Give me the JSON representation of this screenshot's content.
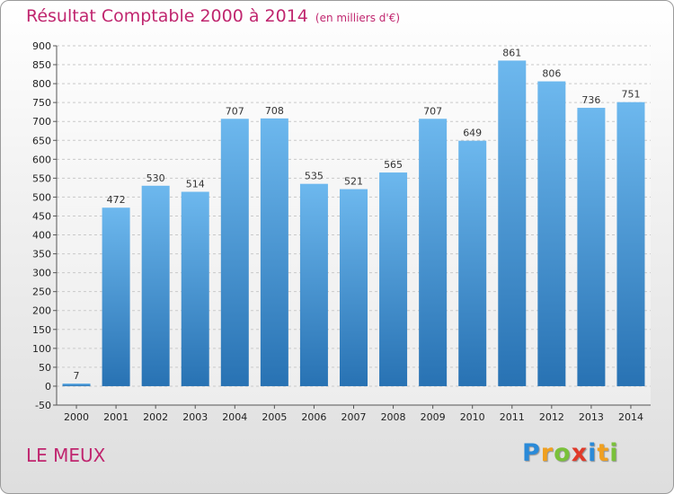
{
  "title": "Résultat Comptable 2000 à 2014",
  "subtitle": "(en milliers d'€)",
  "town": "LE MEUX",
  "logo": {
    "letters": [
      "P",
      "r",
      "o",
      "x",
      "i",
      "t",
      "i"
    ],
    "colors": [
      "#2a8ad8",
      "#f0a020",
      "#7ac13a",
      "#e03a2a",
      "#2a8ad8",
      "#f0a020",
      "#7ac13a"
    ]
  },
  "colors": {
    "bar_light": "#6db8ee",
    "bar_dark": "#2872b3",
    "title": "#c0266f"
  },
  "chart_data": {
    "type": "bar",
    "title": "Résultat Comptable 2000 à 2014",
    "categories": [
      "2000",
      "2001",
      "2002",
      "2003",
      "2004",
      "2005",
      "2006",
      "2007",
      "2008",
      "2009",
      "2010",
      "2011",
      "2012",
      "2013",
      "2014"
    ],
    "values": [
      7,
      472,
      530,
      514,
      707,
      708,
      535,
      521,
      565,
      707,
      649,
      861,
      806,
      736,
      751
    ],
    "ylim": [
      -50,
      900
    ],
    "yticks": [
      -50,
      0,
      50,
      100,
      150,
      200,
      250,
      300,
      350,
      400,
      450,
      500,
      550,
      600,
      650,
      700,
      750,
      800,
      850,
      900
    ],
    "grid": true,
    "xlabel": "",
    "ylabel": ""
  }
}
